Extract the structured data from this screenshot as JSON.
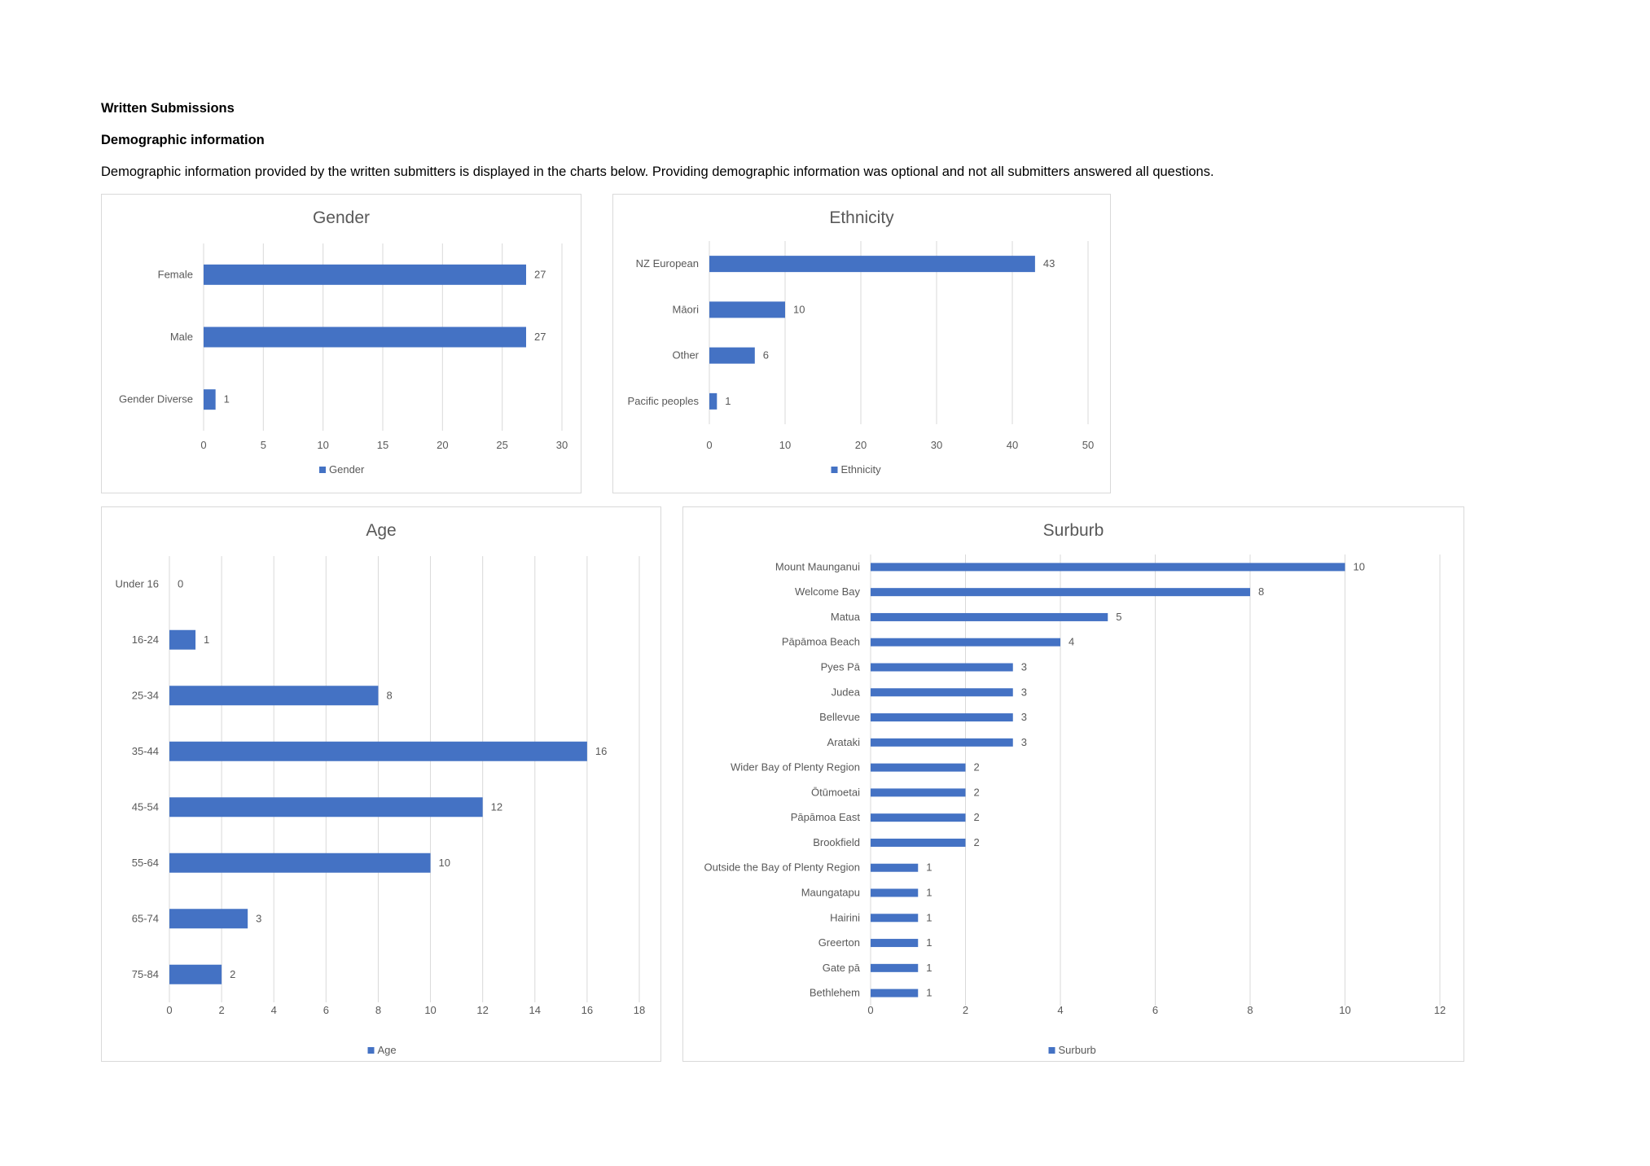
{
  "page": {
    "heading1": "Written Submissions",
    "heading2": "Demographic information",
    "intro": "Demographic information provided by the written submitters is displayed in the charts below. Providing demographic information was optional and not all submitters answered all questions."
  },
  "colors": {
    "bar": "#4472C4",
    "grid": "#d9d9d9",
    "text": "#595959"
  },
  "chart_data": [
    {
      "id": "gender",
      "type": "bar",
      "orientation": "horizontal",
      "title": "Gender",
      "categories": [
        "Female",
        "Male",
        "Gender Diverse"
      ],
      "series": [
        {
          "name": "Gender",
          "values": [
            27,
            27,
            1
          ]
        }
      ],
      "xlim": [
        0,
        30
      ],
      "ticks": [
        0,
        5,
        10,
        15,
        20,
        25,
        30
      ],
      "grid": true,
      "legend": "bottom"
    },
    {
      "id": "ethnicity",
      "type": "bar",
      "orientation": "horizontal",
      "title": "Ethnicity",
      "categories": [
        "NZ European",
        "Māori",
        "Other",
        "Pacific peoples"
      ],
      "series": [
        {
          "name": "Ethnicity",
          "values": [
            43,
            10,
            6,
            1
          ]
        }
      ],
      "xlim": [
        0,
        50
      ],
      "ticks": [
        0,
        10,
        20,
        30,
        40,
        50
      ],
      "grid": true,
      "legend": "bottom"
    },
    {
      "id": "age",
      "type": "bar",
      "orientation": "horizontal",
      "title": "Age",
      "categories": [
        "Under 16",
        "16-24",
        "25-34",
        "35-44",
        "45-54",
        "55-64",
        "65-74",
        "75-84"
      ],
      "series": [
        {
          "name": "Age",
          "values": [
            0,
            1,
            8,
            16,
            12,
            10,
            3,
            2
          ]
        }
      ],
      "xlim": [
        0,
        18
      ],
      "ticks": [
        0,
        2,
        4,
        6,
        8,
        10,
        12,
        14,
        16,
        18
      ],
      "grid": true,
      "legend": "bottom"
    },
    {
      "id": "suburb",
      "type": "bar",
      "orientation": "horizontal",
      "title": "Surburb",
      "categories": [
        "Mount Maunganui",
        "Welcome Bay",
        "Matua",
        "Pāpāmoa Beach",
        "Pyes Pā",
        "Judea",
        "Bellevue",
        "Arataki",
        "Wider Bay of Plenty Region",
        "Ōtūmoetai",
        "Pāpāmoa East",
        "Brookfield",
        "Outside the Bay of Plenty Region",
        "Maungatapu",
        "Hairini",
        "Greerton",
        "Gate pā",
        "Bethlehem"
      ],
      "series": [
        {
          "name": "Surburb",
          "values": [
            10,
            8,
            5,
            4,
            3,
            3,
            3,
            3,
            2,
            2,
            2,
            2,
            1,
            1,
            1,
            1,
            1,
            1
          ]
        }
      ],
      "xlim": [
        0,
        12
      ],
      "ticks": [
        0,
        2,
        4,
        6,
        8,
        10,
        12
      ],
      "grid": true,
      "legend": "bottom"
    }
  ]
}
